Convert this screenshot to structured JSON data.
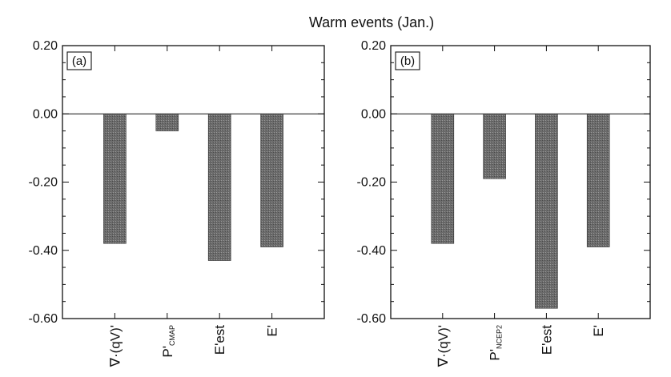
{
  "title": "Warm events (Jan.)",
  "chart_data": [
    {
      "type": "bar",
      "panel_label": "(a)",
      "categories": [
        {
          "main": "∇·(qV)'",
          "sub": ""
        },
        {
          "main": "P'",
          "sub": "CMAP"
        },
        {
          "main": "E'est",
          "sub": ""
        },
        {
          "main": "E'",
          "sub": ""
        }
      ],
      "values": [
        -0.38,
        -0.05,
        -0.43,
        -0.39
      ],
      "ylim": [
        -0.6,
        0.2
      ],
      "yticks": [
        "0.20",
        "0.00",
        "-0.20",
        "-0.40",
        "-0.60"
      ],
      "bar_color": "#6b6b6b"
    },
    {
      "type": "bar",
      "panel_label": "(b)",
      "categories": [
        {
          "main": "∇·(qV)'",
          "sub": ""
        },
        {
          "main": "P'",
          "sub": "NCEP2"
        },
        {
          "main": "E'est",
          "sub": ""
        },
        {
          "main": "E'",
          "sub": ""
        }
      ],
      "values": [
        -0.38,
        -0.19,
        -0.57,
        -0.39
      ],
      "ylim": [
        -0.6,
        0.2
      ],
      "yticks": [
        "0.20",
        "0.00",
        "-0.20",
        "-0.40",
        "-0.60"
      ],
      "bar_color": "#6b6b6b"
    }
  ]
}
